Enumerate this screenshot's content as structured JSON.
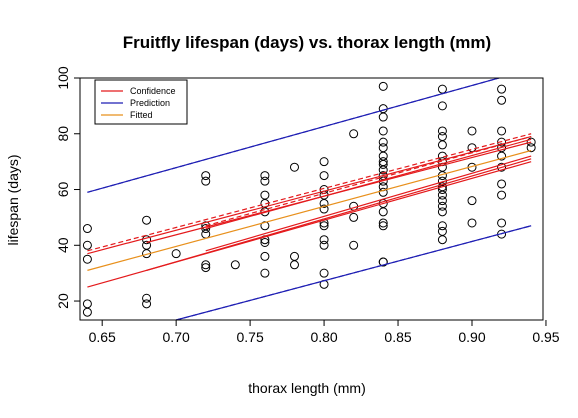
{
  "chart_data": {
    "type": "scatter",
    "title": "Fruitfly lifespan (days) vs. thorax length (mm)",
    "xlabel": "thorax length (mm)",
    "ylabel": "lifespan (days)",
    "xlim": [
      0.635,
      0.948
    ],
    "ylim": [
      13.2,
      100
    ],
    "xticks": [
      0.65,
      0.7,
      0.75,
      0.8,
      0.85,
      0.9,
      0.95
    ],
    "xtick_labels": [
      "0.65",
      "0.70",
      "0.75",
      "0.80",
      "0.85",
      "0.90",
      "0.95"
    ],
    "yticks": [
      20,
      40,
      60,
      80,
      100
    ],
    "ytick_labels": [
      "20",
      "40",
      "60",
      "80",
      "100"
    ],
    "grid": false,
    "legend_position": "top-left",
    "legend": [
      {
        "label": "Confidence",
        "color": "#e41a1c"
      },
      {
        "label": "Prediction",
        "color": "#1f1fb4"
      },
      {
        "label": "Fitted",
        "color": "#e8901c"
      }
    ],
    "points": [
      {
        "x": 0.64,
        "y": 16
      },
      {
        "x": 0.64,
        "y": 19
      },
      {
        "x": 0.64,
        "y": 35
      },
      {
        "x": 0.64,
        "y": 40
      },
      {
        "x": 0.64,
        "y": 46
      },
      {
        "x": 0.68,
        "y": 19
      },
      {
        "x": 0.68,
        "y": 21
      },
      {
        "x": 0.68,
        "y": 37
      },
      {
        "x": 0.68,
        "y": 40
      },
      {
        "x": 0.68,
        "y": 42
      },
      {
        "x": 0.68,
        "y": 49
      },
      {
        "x": 0.7,
        "y": 37
      },
      {
        "x": 0.72,
        "y": 32
      },
      {
        "x": 0.72,
        "y": 33
      },
      {
        "x": 0.72,
        "y": 44
      },
      {
        "x": 0.72,
        "y": 46
      },
      {
        "x": 0.72,
        "y": 47
      },
      {
        "x": 0.72,
        "y": 63
      },
      {
        "x": 0.72,
        "y": 65
      },
      {
        "x": 0.74,
        "y": 33
      },
      {
        "x": 0.76,
        "y": 30
      },
      {
        "x": 0.76,
        "y": 36
      },
      {
        "x": 0.76,
        "y": 41
      },
      {
        "x": 0.76,
        "y": 42
      },
      {
        "x": 0.76,
        "y": 47
      },
      {
        "x": 0.76,
        "y": 52
      },
      {
        "x": 0.76,
        "y": 55
      },
      {
        "x": 0.76,
        "y": 58
      },
      {
        "x": 0.76,
        "y": 63
      },
      {
        "x": 0.76,
        "y": 65
      },
      {
        "x": 0.78,
        "y": 33
      },
      {
        "x": 0.78,
        "y": 36
      },
      {
        "x": 0.78,
        "y": 68
      },
      {
        "x": 0.8,
        "y": 26
      },
      {
        "x": 0.8,
        "y": 30
      },
      {
        "x": 0.8,
        "y": 40
      },
      {
        "x": 0.8,
        "y": 42
      },
      {
        "x": 0.8,
        "y": 47
      },
      {
        "x": 0.8,
        "y": 48
      },
      {
        "x": 0.8,
        "y": 53
      },
      {
        "x": 0.8,
        "y": 55
      },
      {
        "x": 0.8,
        "y": 58
      },
      {
        "x": 0.8,
        "y": 60
      },
      {
        "x": 0.8,
        "y": 65
      },
      {
        "x": 0.8,
        "y": 70
      },
      {
        "x": 0.82,
        "y": 40
      },
      {
        "x": 0.82,
        "y": 50
      },
      {
        "x": 0.82,
        "y": 54
      },
      {
        "x": 0.82,
        "y": 80
      },
      {
        "x": 0.84,
        "y": 34
      },
      {
        "x": 0.84,
        "y": 34
      },
      {
        "x": 0.84,
        "y": 47
      },
      {
        "x": 0.84,
        "y": 48
      },
      {
        "x": 0.84,
        "y": 52
      },
      {
        "x": 0.84,
        "y": 55
      },
      {
        "x": 0.84,
        "y": 59
      },
      {
        "x": 0.84,
        "y": 61
      },
      {
        "x": 0.84,
        "y": 63
      },
      {
        "x": 0.84,
        "y": 65
      },
      {
        "x": 0.84,
        "y": 67
      },
      {
        "x": 0.84,
        "y": 69
      },
      {
        "x": 0.84,
        "y": 70
      },
      {
        "x": 0.84,
        "y": 72
      },
      {
        "x": 0.84,
        "y": 75
      },
      {
        "x": 0.84,
        "y": 77
      },
      {
        "x": 0.84,
        "y": 81
      },
      {
        "x": 0.84,
        "y": 86
      },
      {
        "x": 0.84,
        "y": 89
      },
      {
        "x": 0.84,
        "y": 97
      },
      {
        "x": 0.88,
        "y": 42
      },
      {
        "x": 0.88,
        "y": 45
      },
      {
        "x": 0.88,
        "y": 47
      },
      {
        "x": 0.88,
        "y": 52
      },
      {
        "x": 0.88,
        "y": 54
      },
      {
        "x": 0.88,
        "y": 56
      },
      {
        "x": 0.88,
        "y": 58
      },
      {
        "x": 0.88,
        "y": 60
      },
      {
        "x": 0.88,
        "y": 61
      },
      {
        "x": 0.88,
        "y": 63
      },
      {
        "x": 0.88,
        "y": 65
      },
      {
        "x": 0.88,
        "y": 68
      },
      {
        "x": 0.88,
        "y": 70
      },
      {
        "x": 0.88,
        "y": 72
      },
      {
        "x": 0.88,
        "y": 76
      },
      {
        "x": 0.88,
        "y": 79
      },
      {
        "x": 0.88,
        "y": 81
      },
      {
        "x": 0.88,
        "y": 90
      },
      {
        "x": 0.88,
        "y": 96
      },
      {
        "x": 0.9,
        "y": 48
      },
      {
        "x": 0.9,
        "y": 56
      },
      {
        "x": 0.9,
        "y": 68
      },
      {
        "x": 0.9,
        "y": 75
      },
      {
        "x": 0.9,
        "y": 81
      },
      {
        "x": 0.92,
        "y": 44
      },
      {
        "x": 0.92,
        "y": 48
      },
      {
        "x": 0.92,
        "y": 58
      },
      {
        "x": 0.92,
        "y": 62
      },
      {
        "x": 0.92,
        "y": 68
      },
      {
        "x": 0.92,
        "y": 72
      },
      {
        "x": 0.92,
        "y": 75
      },
      {
        "x": 0.92,
        "y": 77
      },
      {
        "x": 0.92,
        "y": 81
      },
      {
        "x": 0.92,
        "y": 92
      },
      {
        "x": 0.92,
        "y": 96
      },
      {
        "x": 0.94,
        "y": 75
      },
      {
        "x": 0.94,
        "y": 77
      }
    ],
    "fitted_line": [
      {
        "x": 0.64,
        "y": 31
      },
      {
        "x": 0.94,
        "y": 74
      }
    ],
    "confidence_lines": [
      {
        "style": "solid",
        "points": [
          {
            "x": 0.64,
            "y": 25
          },
          {
            "x": 0.94,
            "y": 70
          }
        ]
      },
      {
        "style": "solid",
        "points": [
          {
            "x": 0.64,
            "y": 37
          },
          {
            "x": 0.94,
            "y": 79
          }
        ]
      },
      {
        "style": "solid",
        "points": [
          {
            "x": 0.68,
            "y": 31
          },
          {
            "x": 0.94,
            "y": 71
          }
        ]
      },
      {
        "style": "solid",
        "points": [
          {
            "x": 0.68,
            "y": 41
          },
          {
            "x": 0.94,
            "y": 77
          }
        ]
      },
      {
        "style": "solid",
        "points": [
          {
            "x": 0.72,
            "y": 38
          },
          {
            "x": 0.94,
            "y": 72
          }
        ]
      },
      {
        "style": "solid",
        "points": [
          {
            "x": 0.72,
            "y": 46
          },
          {
            "x": 0.94,
            "y": 78
          }
        ]
      },
      {
        "style": "dashed",
        "points": [
          {
            "x": 0.64,
            "y": 38
          },
          {
            "x": 0.94,
            "y": 80
          }
        ]
      },
      {
        "style": "dashed",
        "points": [
          {
            "x": 0.72,
            "y": 47
          },
          {
            "x": 0.94,
            "y": 79
          }
        ]
      }
    ],
    "prediction_lines": [
      {
        "style": "solid",
        "points": [
          {
            "x": 0.64,
            "y": 59
          },
          {
            "x": 0.925,
            "y": 101
          }
        ]
      },
      {
        "style": "solid",
        "points": [
          {
            "x": 0.7,
            "y": 13.2
          },
          {
            "x": 0.94,
            "y": 47
          }
        ]
      },
      {
        "style": "dashed",
        "points": [
          {
            "x": 0.64,
            "y": 59
          },
          {
            "x": 0.925,
            "y": 101
          }
        ]
      },
      {
        "style": "dashed",
        "points": [
          {
            "x": 0.7,
            "y": 13.2
          },
          {
            "x": 0.94,
            "y": 47
          }
        ]
      }
    ]
  }
}
